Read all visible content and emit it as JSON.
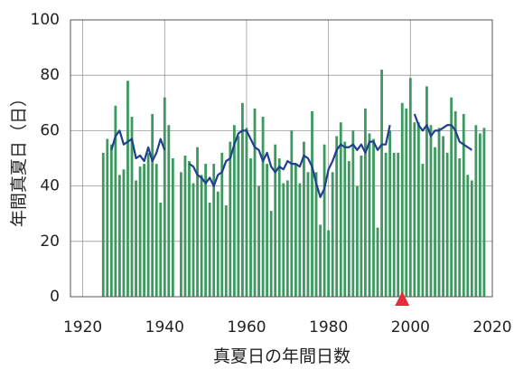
{
  "chart_data": {
    "type": "bar",
    "x_label": "真夏日の年間日数",
    "y_label": "年間真夏日（日）",
    "x": [
      1925,
      1926,
      1927,
      1928,
      1929,
      1930,
      1931,
      1932,
      1933,
      1934,
      1935,
      1936,
      1937,
      1938,
      1939,
      1940,
      1941,
      1942,
      1943,
      1944,
      1945,
      1946,
      1947,
      1948,
      1949,
      1950,
      1951,
      1952,
      1953,
      1954,
      1955,
      1956,
      1957,
      1958,
      1959,
      1960,
      1961,
      1962,
      1963,
      1964,
      1965,
      1966,
      1967,
      1968,
      1969,
      1970,
      1971,
      1972,
      1973,
      1974,
      1975,
      1976,
      1977,
      1978,
      1979,
      1980,
      1981,
      1982,
      1983,
      1984,
      1985,
      1986,
      1987,
      1988,
      1989,
      1990,
      1991,
      1992,
      1993,
      1994,
      1995,
      1996,
      1997,
      1998,
      1999,
      2000,
      2001,
      2002,
      2003,
      2004,
      2005,
      2006,
      2007,
      2008,
      2009,
      2010,
      2011,
      2012,
      2013,
      2014,
      2015,
      2016,
      2017,
      2018
    ],
    "series": [
      {
        "type": "bar",
        "color": "#3d9960",
        "values": [
          52,
          57,
          55,
          69,
          44,
          46,
          78,
          65,
          42,
          47,
          48,
          52,
          66,
          48,
          34,
          72,
          62,
          50,
          null,
          45,
          51,
          49,
          41,
          54,
          44,
          48,
          34,
          48,
          38,
          52,
          33,
          56,
          62,
          58,
          70,
          61,
          50,
          68,
          40,
          65,
          48,
          31,
          55,
          50,
          41,
          42,
          60,
          48,
          41,
          56,
          45,
          67,
          45,
          26,
          55,
          24,
          45,
          58,
          63,
          56,
          49,
          60,
          40,
          51,
          68,
          59,
          57,
          25,
          82,
          52,
          60,
          52,
          52,
          70,
          68,
          79,
          63,
          63,
          48,
          76,
          62,
          54,
          61,
          58,
          52,
          72,
          67,
          50,
          66,
          44,
          42,
          62,
          59,
          61
        ]
      },
      {
        "type": "line",
        "color": "#1f3f8f",
        "values": [
          null,
          null,
          53,
          58,
          60,
          55,
          56,
          57,
          50,
          51,
          49,
          54,
          49,
          52,
          57,
          53,
          null,
          null,
          null,
          null,
          null,
          48,
          47,
          44,
          43,
          41,
          43,
          40,
          44,
          45,
          49,
          50,
          55,
          59,
          60,
          60,
          57,
          54,
          53,
          49,
          52,
          47,
          45,
          47,
          46,
          49,
          48,
          48,
          47,
          51,
          50,
          47,
          41,
          36,
          39,
          46,
          49,
          53,
          55,
          54,
          54,
          55,
          53,
          55,
          52,
          56,
          56,
          53,
          55,
          55,
          62,
          null,
          null,
          null,
          null,
          null,
          66,
          62,
          60,
          62,
          58,
          60,
          60,
          61,
          62,
          62,
          60,
          56,
          55,
          54,
          53,
          null,
          null,
          null
        ]
      }
    ],
    "marker_x": 1998,
    "marker_color": "#e0303a",
    "xlim": [
      1917,
      2020
    ],
    "xticks": [
      1920,
      1940,
      1960,
      1980,
      2000,
      2020
    ],
    "ylim": [
      0,
      100
    ],
    "yticks": [
      0,
      20,
      40,
      60,
      80,
      100
    ],
    "grid": true
  }
}
